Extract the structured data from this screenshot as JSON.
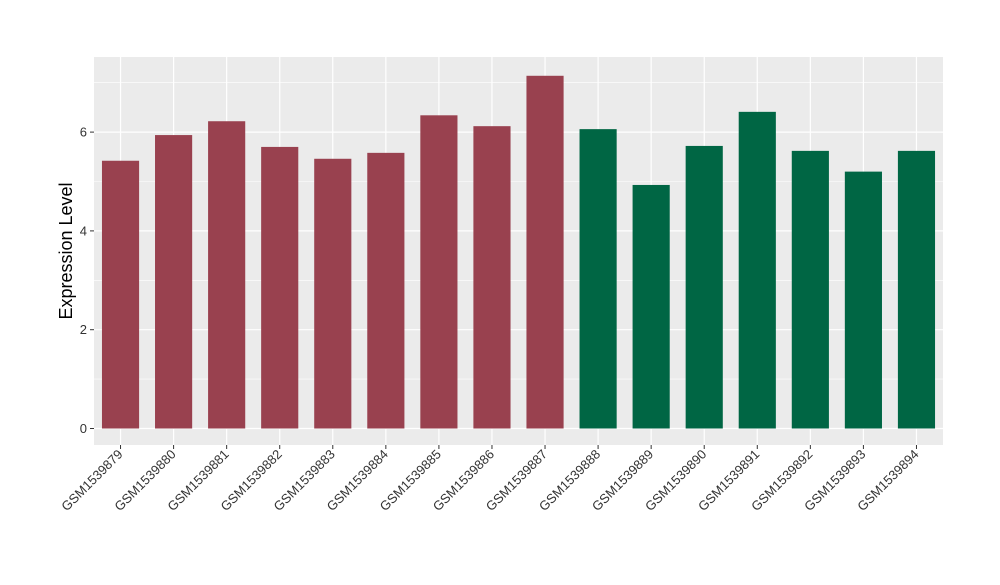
{
  "chart_data": {
    "type": "bar",
    "title": "",
    "xlabel": "",
    "ylabel": "Expression Level",
    "ylim": [
      0,
      7.5
    ],
    "yticks": [
      0,
      2,
      4,
      6
    ],
    "grid": true,
    "background": "#ebebeb",
    "categories": [
      "GSM1539879",
      "GSM1539880",
      "GSM1539881",
      "GSM1539882",
      "GSM1539883",
      "GSM1539884",
      "GSM1539885",
      "GSM1539886",
      "GSM1539887",
      "GSM1539888",
      "GSM1539889",
      "GSM1539890",
      "GSM1539891",
      "GSM1539892",
      "GSM1539893",
      "GSM1539894"
    ],
    "values": [
      5.42,
      5.94,
      6.22,
      5.7,
      5.46,
      5.58,
      6.34,
      6.12,
      7.14,
      6.06,
      4.93,
      5.72,
      6.41,
      5.62,
      5.2,
      5.62
    ],
    "groups": [
      0,
      0,
      0,
      0,
      0,
      0,
      0,
      0,
      0,
      1,
      1,
      1,
      1,
      1,
      1,
      1
    ],
    "group_colors": [
      "#99414f",
      "#006644"
    ]
  }
}
